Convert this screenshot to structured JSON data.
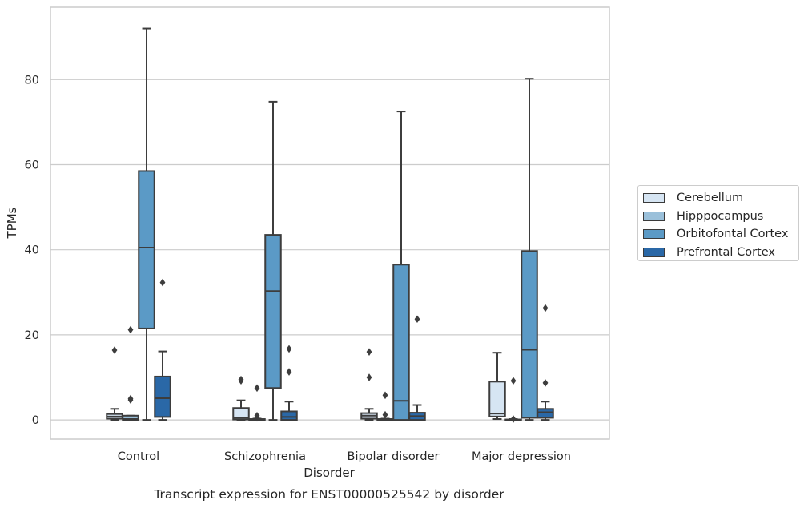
{
  "chart_data": {
    "type": "box",
    "title": "Transcript expression for ENST00000525542 by disorder",
    "xlabel": "Disorder",
    "ylabel": "TPMs",
    "ylim": [
      -4.5,
      97
    ],
    "yticks": [
      0,
      20,
      40,
      60,
      80
    ],
    "grid": true,
    "legend_position": "right",
    "categories": [
      "Control",
      "Schizophrenia",
      "Bipolar disorder",
      "Major depression"
    ],
    "series": [
      {
        "name": "Cerebellum",
        "color": "#d6e5f3",
        "boxes": [
          {
            "min": 0.0,
            "q1": 0.3,
            "median": 0.8,
            "q3": 1.4,
            "max": 2.6,
            "outliers": [
              16.4
            ]
          },
          {
            "min": 0.0,
            "q1": 0.1,
            "median": 0.5,
            "q3": 2.8,
            "max": 4.6,
            "outliers": [
              9.2,
              9.5
            ]
          },
          {
            "min": 0.0,
            "q1": 0.3,
            "median": 1.0,
            "q3": 1.6,
            "max": 2.6,
            "outliers": [
              10.0,
              16.0
            ]
          },
          {
            "min": 0.2,
            "q1": 0.8,
            "median": 1.5,
            "q3": 9.0,
            "max": 15.8,
            "outliers": []
          }
        ]
      },
      {
        "name": "Hipppocampus",
        "color": "#9ac0da",
        "boxes": [
          {
            "min": 0.0,
            "q1": 0.0,
            "median": 0.2,
            "q3": 1.0,
            "max": 1.0,
            "outliers": [
              4.7,
              5.0,
              21.2
            ]
          },
          {
            "min": 0.0,
            "q1": 0.0,
            "median": 0.1,
            "q3": 0.2,
            "max": 0.3,
            "outliers": [
              0.5,
              1.0,
              7.5
            ]
          },
          {
            "min": 0.0,
            "q1": 0.0,
            "median": 0.1,
            "q3": 0.2,
            "max": 0.3,
            "outliers": [
              1.2,
              5.8
            ]
          },
          {
            "min": 0.0,
            "q1": 0.0,
            "median": 0.05,
            "q3": 0.1,
            "max": 0.2,
            "outliers": [
              0.2,
              9.2
            ]
          }
        ]
      },
      {
        "name": "Orbitofontal Cortex",
        "color": "#5b9ac6",
        "boxes": [
          {
            "min": 0.0,
            "q1": 21.5,
            "median": 40.5,
            "q3": 58.5,
            "max": 92.0,
            "outliers": []
          },
          {
            "min": 0.0,
            "q1": 7.5,
            "median": 30.3,
            "q3": 43.5,
            "max": 74.8,
            "outliers": []
          },
          {
            "min": 0.0,
            "q1": 0.0,
            "median": 4.5,
            "q3": 36.5,
            "max": 72.5,
            "outliers": []
          },
          {
            "min": 0.0,
            "q1": 0.5,
            "median": 16.5,
            "q3": 39.7,
            "max": 80.2,
            "outliers": []
          }
        ]
      },
      {
        "name": "Prefrontal Cortex",
        "color": "#2a68a7",
        "boxes": [
          {
            "min": 0.0,
            "q1": 0.7,
            "median": 5.1,
            "q3": 10.2,
            "max": 16.1,
            "outliers": [
              32.3
            ]
          },
          {
            "min": 0.0,
            "q1": 0.0,
            "median": 0.7,
            "q3": 2.0,
            "max": 4.3,
            "outliers": [
              11.3,
              16.7
            ]
          },
          {
            "min": 0.0,
            "q1": 0.0,
            "median": 0.9,
            "q3": 1.7,
            "max": 3.5,
            "outliers": [
              23.7
            ]
          },
          {
            "min": 0.0,
            "q1": 0.5,
            "median": 1.8,
            "q3": 2.6,
            "max": 4.3,
            "outliers": [
              8.7,
              26.3
            ]
          }
        ]
      }
    ]
  }
}
